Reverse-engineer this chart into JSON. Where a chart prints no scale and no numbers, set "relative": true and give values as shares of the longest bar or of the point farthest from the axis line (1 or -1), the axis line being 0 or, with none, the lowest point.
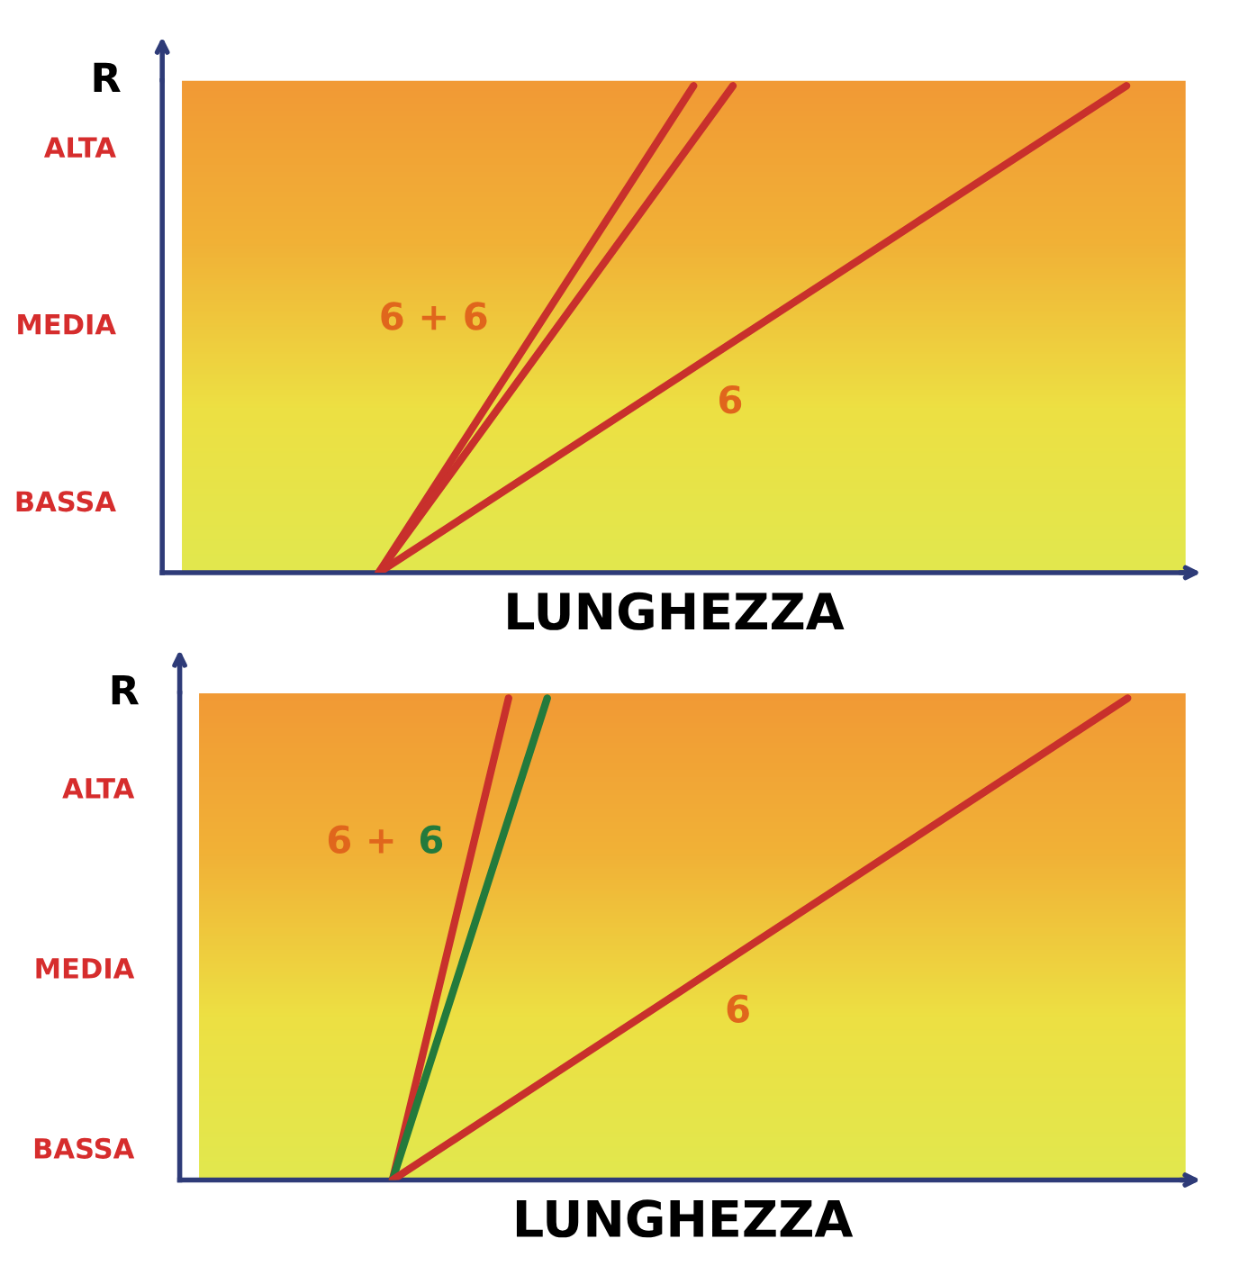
{
  "chart_data": [
    {
      "type": "line",
      "ylabel": "R",
      "xlabel": "LUNGHEZZA",
      "categories": [
        null,
        null,
        null,
        null,
        null,
        null,
        null,
        null,
        null,
        null,
        null,
        null,
        null,
        null,
        null,
        null,
        null,
        null,
        null,
        null,
        null,
        null,
        null,
        null,
        null,
        null
      ],
      "relative": true,
      "annotations": [
        "BASSA",
        "MEDIA",
        "ALTA"
      ],
      "series": [
        {
          "name": "6 + 6",
          "color": "#c8302c",
          "values": [
            null,
            null,
            null,
            null,
            null,
            0,
            null,
            null,
            null,
            null,
            null,
            null,
            null,
            1,
            null,
            null,
            null,
            null,
            null,
            null,
            null,
            null,
            null,
            null,
            null,
            null
          ]
        },
        {
          "color": "#c8302c",
          "values": [
            null,
            null,
            null,
            null,
            null,
            0,
            null,
            null,
            null,
            null,
            null,
            null,
            null,
            null,
            1,
            null,
            null,
            null,
            null,
            null,
            null,
            null,
            null,
            null,
            null,
            null
          ]
        },
        {
          "name": "6",
          "color": "#c8302c",
          "values": [
            null,
            null,
            null,
            null,
            null,
            0,
            null,
            null,
            null,
            null,
            null,
            null,
            null,
            null,
            null,
            null,
            null,
            null,
            null,
            null,
            null,
            null,
            null,
            null,
            1,
            null
          ]
        }
      ]
    },
    {
      "type": "line",
      "ylabel": "R",
      "xlabel": "LUNGHEZZA",
      "categories": [
        null,
        null,
        null,
        null,
        null,
        null,
        null,
        null,
        null,
        null,
        null,
        null,
        null,
        null,
        null,
        null,
        null,
        null,
        null,
        null,
        null,
        null,
        null,
        null,
        null,
        null
      ],
      "relative": true,
      "annotations": [
        "BASSA",
        "MEDIA",
        "ALTA"
      ],
      "series": [
        {
          "name": "6 +",
          "color": "#c8302c",
          "values": [
            null,
            null,
            null,
            null,
            null,
            0,
            null,
            null,
            1,
            null,
            null,
            null,
            null,
            null,
            null,
            null,
            null,
            null,
            null,
            null,
            null,
            null,
            null,
            null,
            null,
            null
          ]
        },
        {
          "name": "6",
          "color": "#237a3c",
          "values": [
            null,
            null,
            null,
            null,
            null,
            0,
            null,
            null,
            null,
            1,
            null,
            null,
            null,
            null,
            null,
            null,
            null,
            null,
            null,
            null,
            null,
            null,
            null,
            null,
            null,
            null
          ]
        },
        {
          "name": "6",
          "color": "#c8302c",
          "values": [
            null,
            null,
            null,
            null,
            null,
            0,
            null,
            null,
            null,
            null,
            null,
            null,
            null,
            null,
            null,
            null,
            null,
            null,
            null,
            null,
            null,
            null,
            null,
            null,
            1,
            null
          ]
        }
      ]
    }
  ]
}
